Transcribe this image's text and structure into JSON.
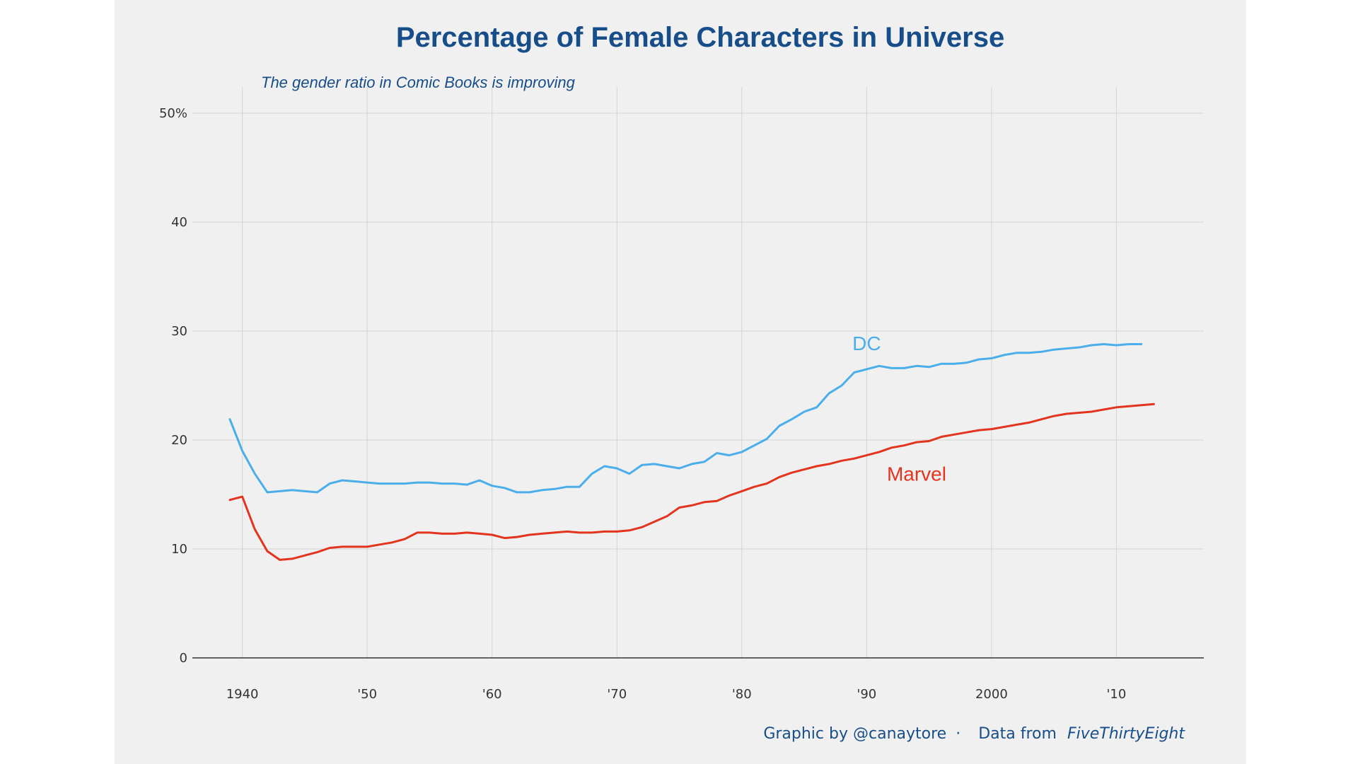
{
  "chart_data": {
    "type": "line",
    "title": "Percentage of Female Characters in Universe",
    "subtitle": "The gender ratio in Comic Books is improving",
    "xlabel": "",
    "ylabel": "",
    "xlim": [
      1936,
      2017
    ],
    "ylim": [
      0,
      50
    ],
    "x_ticks": [
      1940,
      1950,
      1960,
      1970,
      1980,
      1990,
      2000,
      2010
    ],
    "x_tick_labels": [
      "1940",
      "'50",
      "'60",
      "'70",
      "'80",
      "'90",
      "2000",
      "'10"
    ],
    "y_ticks": [
      0,
      10,
      20,
      30,
      40,
      50
    ],
    "y_tick_labels": [
      "0",
      "10",
      "20",
      "30",
      "40",
      "50%"
    ],
    "grid": true,
    "series": [
      {
        "name": "DC",
        "color": "#4aaeea",
        "x": [
          1939,
          1940,
          1941,
          1942,
          1943,
          1944,
          1945,
          1946,
          1947,
          1948,
          1949,
          1950,
          1951,
          1952,
          1953,
          1954,
          1955,
          1956,
          1957,
          1958,
          1959,
          1960,
          1961,
          1962,
          1963,
          1964,
          1965,
          1966,
          1967,
          1968,
          1969,
          1970,
          1971,
          1972,
          1973,
          1974,
          1975,
          1976,
          1977,
          1978,
          1979,
          1980,
          1981,
          1982,
          1983,
          1984,
          1985,
          1986,
          1987,
          1988,
          1989,
          1990,
          1991,
          1992,
          1993,
          1994,
          1995,
          1996,
          1997,
          1998,
          1999,
          2000,
          2001,
          2002,
          2003,
          2004,
          2005,
          2006,
          2007,
          2008,
          2009,
          2010,
          2011,
          2012
        ],
        "values": [
          21.9,
          19.0,
          16.9,
          15.2,
          15.3,
          15.4,
          15.3,
          15.2,
          16.0,
          16.3,
          16.2,
          16.1,
          16.0,
          16.0,
          16.0,
          16.1,
          16.1,
          16.0,
          16.0,
          15.9,
          16.3,
          15.8,
          15.6,
          15.2,
          15.2,
          15.4,
          15.5,
          15.7,
          15.7,
          16.9,
          17.6,
          17.4,
          16.9,
          17.7,
          17.8,
          17.6,
          17.4,
          17.8,
          18.0,
          18.8,
          18.6,
          18.9,
          19.5,
          20.1,
          21.3,
          21.9,
          22.6,
          23.0,
          24.3,
          25.0,
          26.2,
          26.5,
          26.8,
          26.6,
          26.6,
          26.8,
          26.7,
          27.0,
          27.0,
          27.1,
          27.4,
          27.5,
          27.8,
          28.0,
          28.0,
          28.1,
          28.3,
          28.4,
          28.5,
          28.7,
          28.8,
          28.7,
          28.8,
          28.8
        ]
      },
      {
        "name": "Marvel",
        "color": "#e3341e",
        "x": [
          1939,
          1940,
          1941,
          1942,
          1943,
          1944,
          1945,
          1946,
          1947,
          1948,
          1949,
          1950,
          1951,
          1952,
          1953,
          1954,
          1955,
          1956,
          1957,
          1958,
          1959,
          1960,
          1961,
          1962,
          1963,
          1964,
          1965,
          1966,
          1967,
          1968,
          1969,
          1970,
          1971,
          1972,
          1973,
          1974,
          1975,
          1976,
          1977,
          1978,
          1979,
          1980,
          1981,
          1982,
          1983,
          1984,
          1985,
          1986,
          1987,
          1988,
          1989,
          1990,
          1991,
          1992,
          1993,
          1994,
          1995,
          1996,
          1997,
          1998,
          1999,
          2000,
          2001,
          2002,
          2003,
          2004,
          2005,
          2006,
          2007,
          2008,
          2009,
          2010,
          2011,
          2012,
          2013
        ],
        "values": [
          14.5,
          14.8,
          11.8,
          9.8,
          9.0,
          9.1,
          9.4,
          9.7,
          10.1,
          10.2,
          10.2,
          10.2,
          10.4,
          10.6,
          10.9,
          11.5,
          11.5,
          11.4,
          11.4,
          11.5,
          11.4,
          11.3,
          11.0,
          11.1,
          11.3,
          11.4,
          11.5,
          11.6,
          11.5,
          11.5,
          11.6,
          11.6,
          11.7,
          12.0,
          12.5,
          13.0,
          13.8,
          14.0,
          14.3,
          14.4,
          14.9,
          15.3,
          15.7,
          16.0,
          16.6,
          17.0,
          17.3,
          17.6,
          17.8,
          18.1,
          18.3,
          18.6,
          18.9,
          19.3,
          19.5,
          19.8,
          19.9,
          20.3,
          20.5,
          20.7,
          20.9,
          21.0,
          21.2,
          21.4,
          21.6,
          21.9,
          22.2,
          22.4,
          22.5,
          22.6,
          22.8,
          23.0,
          23.1,
          23.2,
          23.3
        ]
      }
    ],
    "annotations": [
      {
        "text": "DC",
        "x": 1990,
        "y": 28.9,
        "color": "#4aaeea"
      },
      {
        "text": "Marvel",
        "x": 1994,
        "y": 16.9,
        "color": "#e3341e"
      }
    ]
  },
  "credit": {
    "author": "Graphic by @canaytore",
    "separator": "·",
    "source_prefix": "Data from",
    "source": "FiveThirtyEight"
  }
}
